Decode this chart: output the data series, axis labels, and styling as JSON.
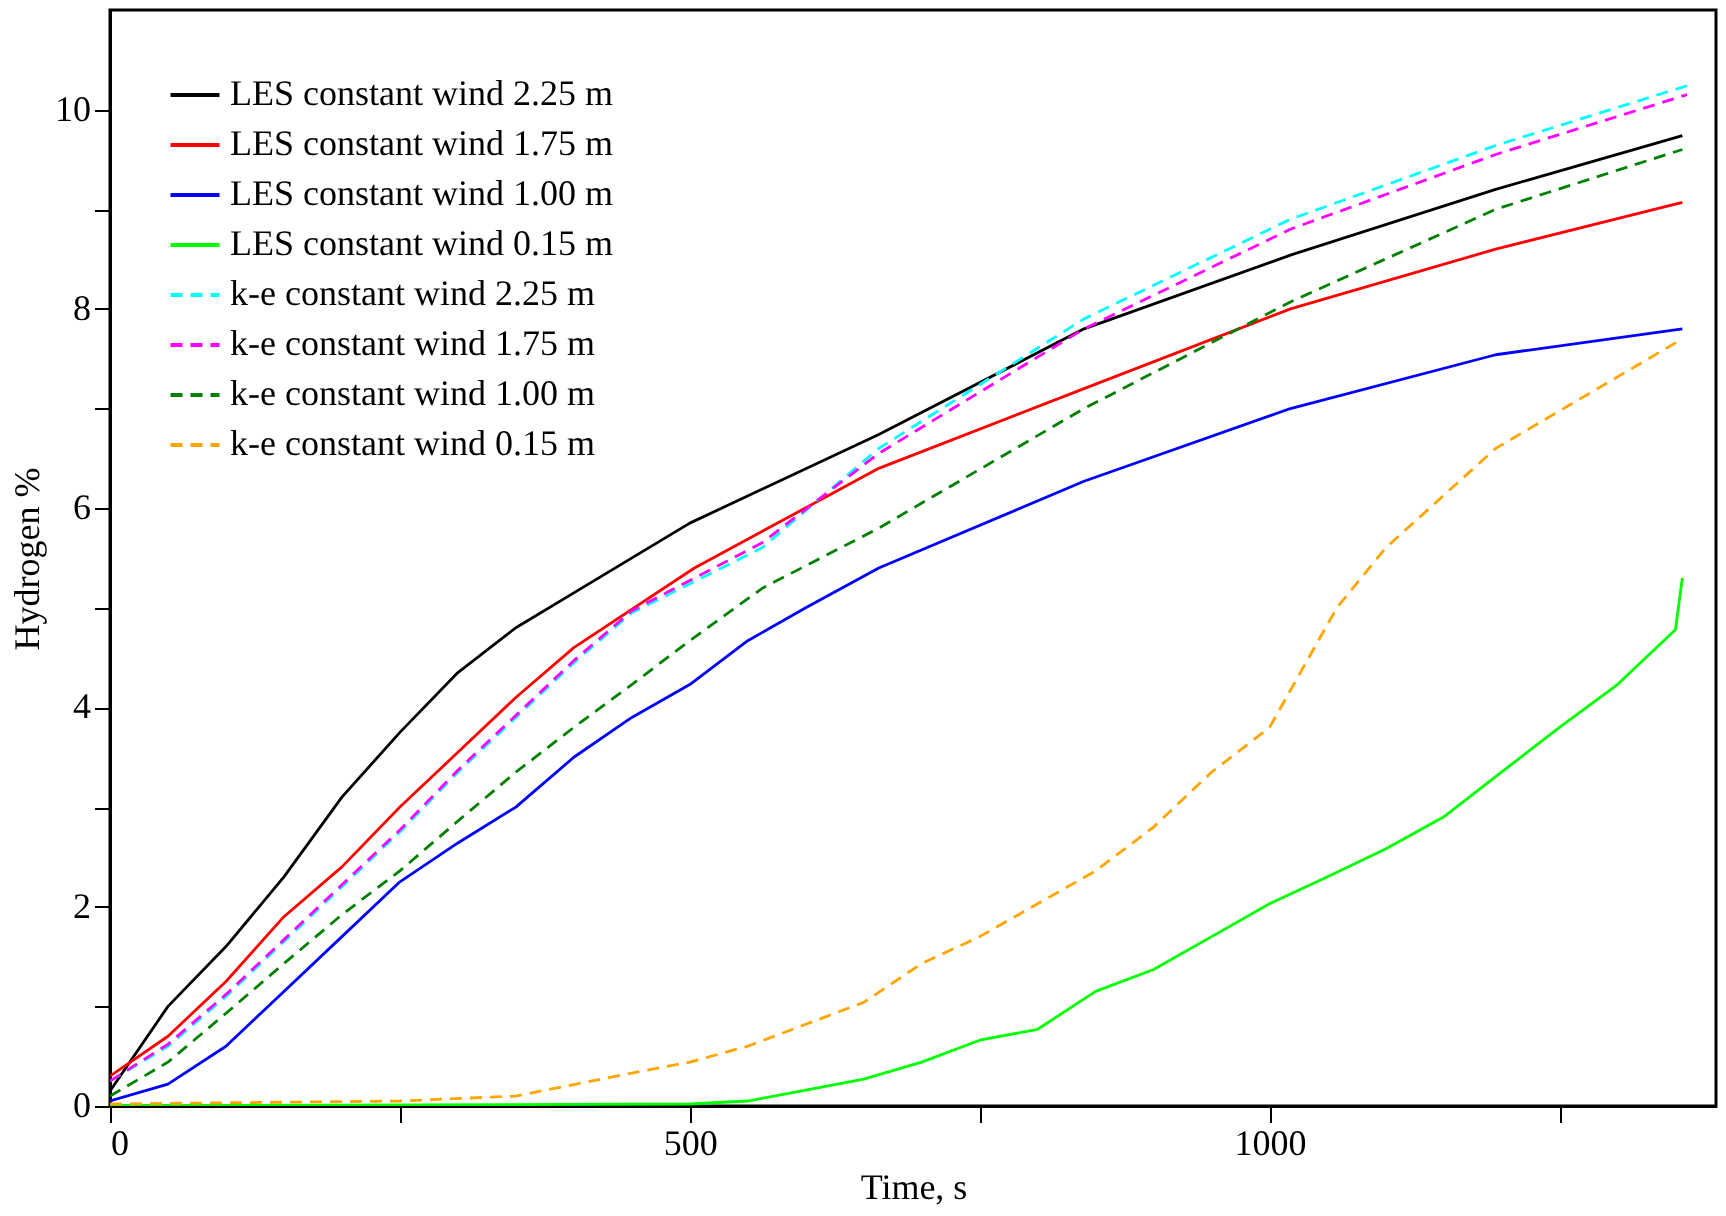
{
  "chart_data": {
    "type": "line",
    "xlabel": "Time, s",
    "ylabel": "Hydrogen %",
    "xlim": [
      0,
      1385
    ],
    "ylim": [
      0,
      11
    ],
    "xticks": [
      0,
      {
        "value": 250,
        "label": null
      },
      500,
      {
        "value": 750,
        "label": null
      },
      1000,
      {
        "value": 1250,
        "label": null
      }
    ],
    "yticks": [
      0,
      {
        "value": 1,
        "label": null
      },
      2,
      {
        "value": 3,
        "label": null
      },
      4,
      {
        "value": 5,
        "label": null
      },
      6,
      {
        "value": 7,
        "label": null
      },
      8,
      {
        "value": 9,
        "label": null
      },
      10
    ],
    "grid": false,
    "legend": "top left",
    "marker": "none",
    "series": [
      {
        "name": "LES constant wind 2.25 m",
        "color": "#000000",
        "line_style": "solid",
        "x": [
          0,
          50,
          100,
          150,
          200,
          250,
          300,
          350,
          400,
          500,
          663,
          840,
          1018,
          1195,
          1356
        ],
        "values": [
          0.15,
          1.0,
          1.6,
          2.3,
          3.1,
          3.75,
          4.35,
          4.8,
          5.15,
          5.85,
          6.74,
          7.8,
          8.54,
          9.2,
          9.74
        ]
      },
      {
        "name": "LES constant wind 1.75 m",
        "color": "#ff0000",
        "line_style": "solid",
        "x": [
          0,
          50,
          100,
          150,
          200,
          250,
          300,
          350,
          400,
          504,
          663,
          840,
          1018,
          1195,
          1356
        ],
        "values": [
          0.3,
          0.7,
          1.25,
          1.9,
          2.4,
          3.0,
          3.55,
          4.1,
          4.6,
          5.4,
          6.4,
          7.2,
          8.0,
          8.6,
          9.07
        ]
      },
      {
        "name": "LES constant wind 1.00 m",
        "color": "#0000ff",
        "line_style": "solid",
        "x": [
          0,
          50,
          100,
          150,
          200,
          250,
          300,
          350,
          400,
          450,
          500,
          550,
          600,
          663,
          840,
          1018,
          1195,
          1356
        ],
        "values": [
          0.05,
          0.22,
          0.6,
          1.15,
          1.7,
          2.25,
          2.64,
          3.0,
          3.5,
          3.9,
          4.23,
          4.67,
          5.0,
          5.4,
          6.27,
          7.0,
          7.54,
          7.8
        ]
      },
      {
        "name": "LES constant wind 0.15 m",
        "color": "#00ff00",
        "line_style": "solid",
        "x": [
          0,
          500,
          550,
          600,
          650,
          700,
          750,
          800,
          850,
          900,
          950,
          1000,
          1050,
          1100,
          1150,
          1200,
          1250,
          1300,
          1350,
          1356
        ],
        "values": [
          0,
          0.02,
          0.05,
          0.16,
          0.27,
          0.44,
          0.66,
          0.77,
          1.15,
          1.37,
          1.7,
          2.03,
          2.3,
          2.58,
          2.9,
          3.35,
          3.8,
          4.23,
          4.78,
          5.3
        ]
      },
      {
        "name": "k-e constant wind 2.25 m",
        "color": "#00ffff",
        "line_style": "dashed",
        "x": [
          0,
          50,
          100,
          150,
          200,
          250,
          300,
          350,
          400,
          450,
          562,
          663,
          840,
          1018,
          1195,
          1360
        ],
        "values": [
          0.25,
          0.6,
          1.1,
          1.65,
          2.2,
          2.75,
          3.35,
          3.9,
          4.45,
          4.95,
          5.6,
          6.6,
          7.9,
          8.9,
          9.64,
          10.24
        ]
      },
      {
        "name": "k-e constant wind 1.75 m",
        "color": "#ff00ff",
        "line_style": "dashed",
        "x": [
          0,
          50,
          100,
          150,
          200,
          250,
          300,
          350,
          400,
          450,
          562,
          663,
          840,
          1018,
          1195,
          1360
        ],
        "values": [
          0.25,
          0.62,
          1.12,
          1.67,
          2.22,
          2.77,
          3.37,
          3.92,
          4.47,
          4.97,
          5.65,
          6.55,
          7.8,
          8.8,
          9.55,
          10.15
        ]
      },
      {
        "name": "k-e constant wind 1.00 m",
        "color": "#008000",
        "line_style": "dashed",
        "x": [
          0,
          50,
          100,
          150,
          200,
          250,
          300,
          350,
          400,
          450,
          500,
          563,
          663,
          840,
          1018,
          1195,
          1356
        ],
        "values": [
          0.1,
          0.44,
          0.93,
          1.43,
          1.92,
          2.36,
          2.86,
          3.35,
          3.8,
          4.23,
          4.67,
          5.2,
          5.8,
          7.0,
          8.07,
          9.0,
          9.6
        ]
      },
      {
        "name": "k-e constant wind 0.15 m",
        "color": "#ffa500",
        "line_style": "dashed",
        "x": [
          0,
          250,
          350,
          450,
          500,
          550,
          600,
          650,
          700,
          750,
          800,
          850,
          900,
          950,
          1000,
          1058,
          1100,
          1195,
          1356
        ],
        "values": [
          0.02,
          0.05,
          0.1,
          0.33,
          0.44,
          0.6,
          0.82,
          1.04,
          1.43,
          1.7,
          2.03,
          2.36,
          2.8,
          3.35,
          3.8,
          5.0,
          5.6,
          6.6,
          7.7
        ]
      }
    ]
  }
}
